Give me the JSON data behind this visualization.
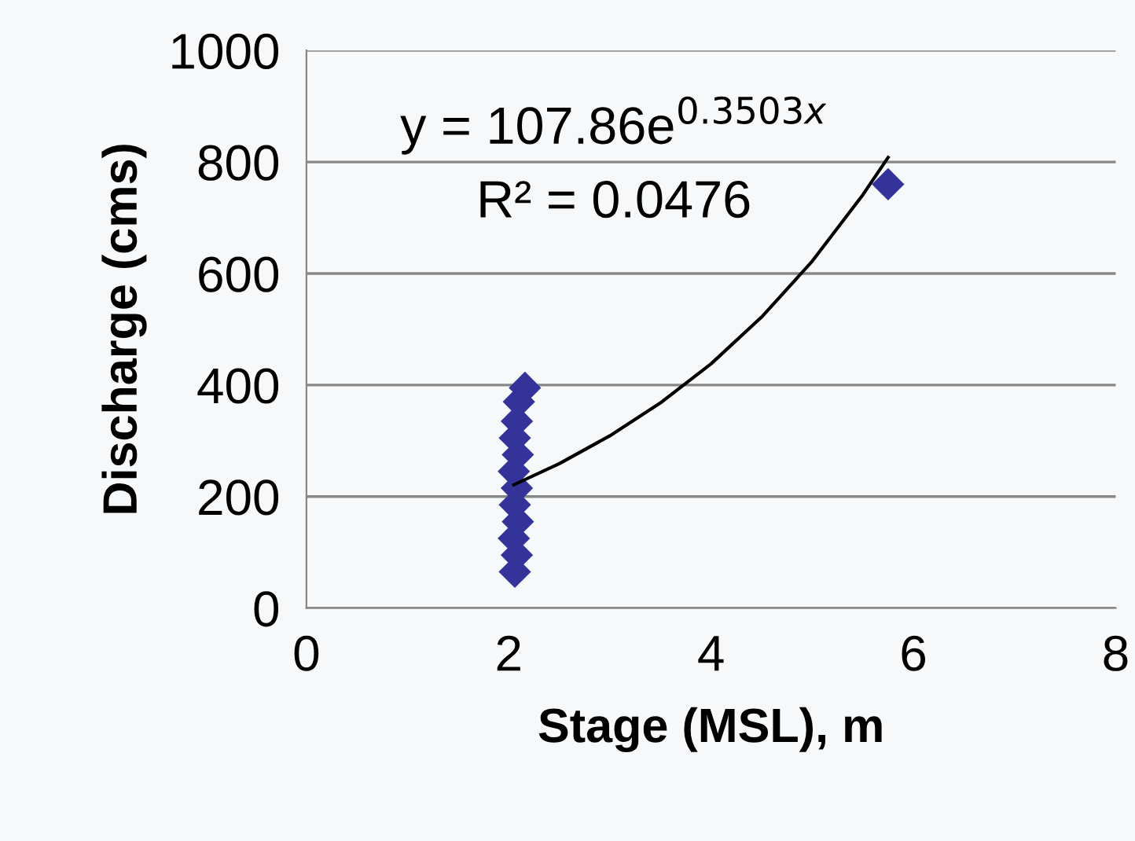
{
  "chart_data": {
    "type": "scatter",
    "xlabel": "Stage (MSL), m",
    "ylabel": "Discharge (cms)",
    "xlim": [
      0,
      8
    ],
    "xticks": [
      0,
      2,
      4,
      6,
      8
    ],
    "ylim": [
      0,
      1000
    ],
    "yticks": [
      0,
      200,
      400,
      600,
      800,
      1000
    ],
    "grid": "y",
    "annotations": [
      "y = 107.86e$^{0.3503x}$",
      "R² = 0.0476"
    ],
    "series": [
      {
        "color": "#333399",
        "marker": "diamond",
        "x": [
          2.06,
          2.08,
          2.05,
          2.09,
          2.06,
          2.08,
          2.05,
          2.09,
          2.06,
          2.08,
          2.1,
          2.16,
          5.75
        ],
        "values": [
          65,
          95,
          125,
          155,
          185,
          215,
          245,
          275,
          305,
          335,
          370,
          395,
          760
        ]
      },
      {
        "type": "line",
        "color": "#000000",
        "marker": "none",
        "line_style": "solid",
        "x": [
          2.05,
          2.5,
          3,
          3.5,
          4,
          4.5,
          5,
          5.5,
          5.75
        ],
        "values": [
          221,
          259,
          309,
          368,
          438,
          522,
          622,
          741,
          808
        ]
      }
    ]
  }
}
